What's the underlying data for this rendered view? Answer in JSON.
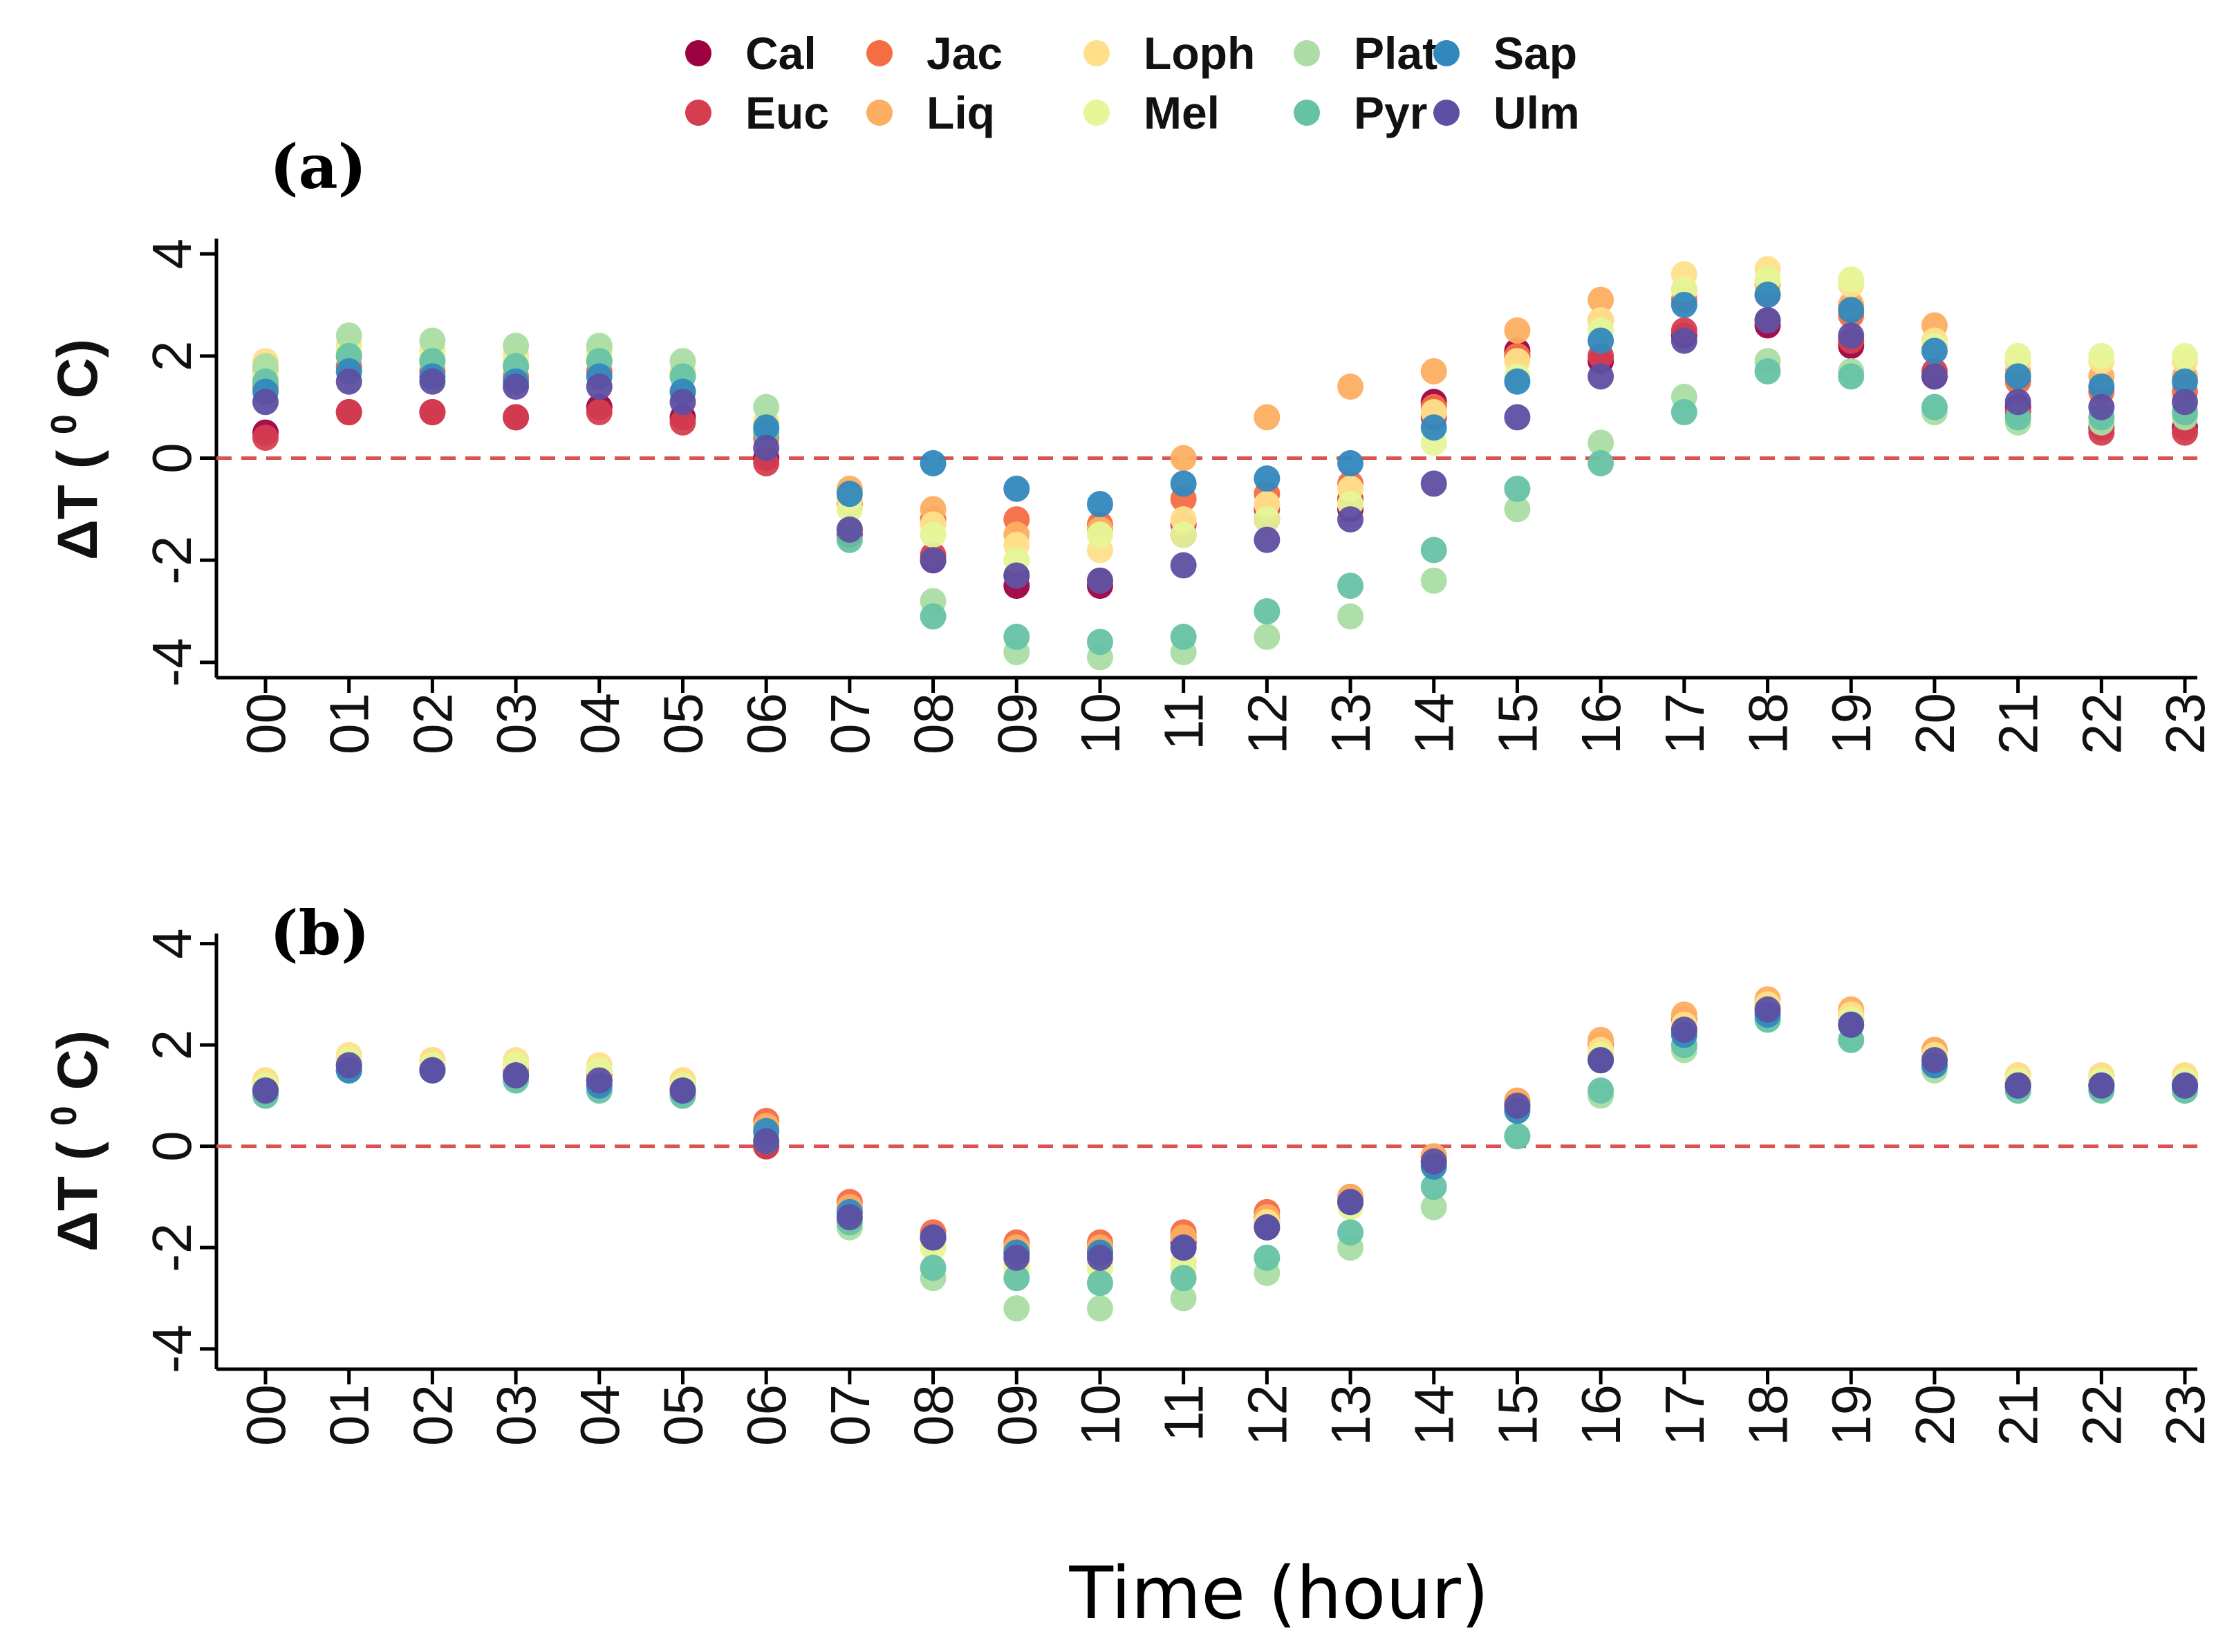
{
  "legend": [
    {
      "key": "Cal",
      "label": "Cal",
      "color": "#9E0142"
    },
    {
      "key": "Euc",
      "label": "Euc",
      "color": "#D53E4F"
    },
    {
      "key": "Jac",
      "label": "Jac",
      "color": "#F46D43"
    },
    {
      "key": "Liq",
      "label": "Liq",
      "color": "#FDAE61"
    },
    {
      "key": "Loph",
      "label": "Loph",
      "color": "#FEE08B"
    },
    {
      "key": "Mel",
      "label": "Mel",
      "color": "#E6F598"
    },
    {
      "key": "Plat",
      "label": "Plat",
      "color": "#ABDDA4"
    },
    {
      "key": "Pyr",
      "label": "Pyr",
      "color": "#66C2A5"
    },
    {
      "key": "Sap",
      "label": "Sap",
      "color": "#3288BD"
    },
    {
      "key": "Ulm",
      "label": "Ulm",
      "color": "#5E4FA2"
    }
  ],
  "xlabel": "Time (hour)",
  "reference_line_color": "#D9534F",
  "chart_data": [
    {
      "type": "scatter",
      "panel_label": "(a)",
      "title": "",
      "ylabel_main": "ΔT (",
      "ylabel_sup": "0",
      "ylabel_end": "C)",
      "ylim": [
        -4.3,
        4.3
      ],
      "yticks": [
        -4,
        -2,
        0,
        2,
        4
      ],
      "ytick_labels": [
        "-4",
        "-2",
        "0",
        "2",
        "4"
      ],
      "hline": 0,
      "x": [
        "00",
        "01",
        "02",
        "03",
        "04",
        "05",
        "06",
        "07",
        "08",
        "09",
        "10",
        "11",
        "12",
        "13",
        "14",
        "15",
        "16",
        "17",
        "18",
        "19",
        "20",
        "21",
        "22",
        "23"
      ],
      "series": [
        {
          "name": "Cal",
          "values": [
            0.5,
            0.9,
            0.9,
            0.8,
            1.0,
            0.8,
            0.0,
            -1.5,
            -2.0,
            -2.5,
            -2.5,
            -1.5,
            -1.2,
            -1.0,
            1.1,
            2.1,
            1.9,
            2.4,
            2.6,
            2.2,
            1.6,
            1.0,
            0.6,
            0.6
          ]
        },
        {
          "name": "Euc",
          "values": [
            0.4,
            0.9,
            0.9,
            0.8,
            0.9,
            0.7,
            -0.1,
            -1.4,
            -1.9,
            -2.3,
            -2.4,
            -1.3,
            -1.0,
            -0.8,
            0.8,
            2.0,
            2.0,
            2.5,
            2.7,
            2.3,
            1.7,
            0.9,
            0.5,
            0.5
          ]
        },
        {
          "name": "Jac",
          "values": [
            1.4,
            1.8,
            1.7,
            1.6,
            1.7,
            1.3,
            0.4,
            -0.9,
            -1.2,
            -1.2,
            -1.3,
            -0.8,
            -0.7,
            -0.5,
            1.0,
            2.0,
            2.7,
            3.1,
            3.2,
            2.8,
            2.2,
            1.5,
            1.3,
            1.3
          ]
        },
        {
          "name": "Liq",
          "values": [
            1.7,
            2.0,
            1.9,
            1.8,
            1.9,
            1.6,
            0.6,
            -0.6,
            -1.0,
            -1.5,
            -1.4,
            0.0,
            0.8,
            1.4,
            1.7,
            2.5,
            3.1,
            3.3,
            3.4,
            3.0,
            2.6,
            1.7,
            1.6,
            1.6
          ]
        },
        {
          "name": "Loph",
          "values": [
            1.9,
            2.2,
            2.1,
            2.0,
            2.1,
            1.7,
            0.7,
            -0.8,
            -1.3,
            -1.7,
            -1.8,
            -1.2,
            -0.9,
            -0.6,
            0.9,
            1.9,
            2.7,
            3.6,
            3.7,
            3.4,
            2.3,
            1.9,
            1.9,
            1.9
          ]
        },
        {
          "name": "Mel",
          "values": [
            1.6,
            2.1,
            2.0,
            1.9,
            2.0,
            1.6,
            0.6,
            -1.0,
            -1.5,
            -2.0,
            -1.5,
            -1.5,
            -1.2,
            -0.9,
            0.3,
            1.6,
            2.5,
            3.3,
            3.5,
            3.5,
            2.2,
            2.0,
            2.0,
            2.0
          ]
        },
        {
          "name": "Plat",
          "values": [
            1.8,
            2.4,
            2.3,
            2.2,
            2.2,
            1.9,
            1.0,
            -1.4,
            -2.8,
            -3.8,
            -3.9,
            -3.8,
            -3.5,
            -3.1,
            -2.4,
            -1.0,
            0.3,
            1.2,
            1.9,
            1.7,
            0.9,
            0.7,
            0.7,
            0.8
          ]
        },
        {
          "name": "Pyr",
          "values": [
            1.5,
            2.0,
            1.9,
            1.8,
            1.9,
            1.6,
            0.5,
            -1.6,
            -3.1,
            -3.5,
            -3.6,
            -3.5,
            -3.0,
            -2.5,
            -1.8,
            -0.6,
            -0.1,
            0.9,
            1.7,
            1.6,
            1.0,
            0.8,
            0.8,
            0.9
          ]
        },
        {
          "name": "Sap",
          "values": [
            1.3,
            1.7,
            1.6,
            1.5,
            1.6,
            1.3,
            0.6,
            -0.7,
            -0.1,
            -0.6,
            -0.9,
            -0.5,
            -0.4,
            -0.1,
            0.6,
            1.5,
            2.3,
            3.0,
            3.2,
            2.9,
            2.1,
            1.6,
            1.4,
            1.5
          ]
        },
        {
          "name": "Ulm",
          "values": [
            1.1,
            1.5,
            1.5,
            1.4,
            1.4,
            1.1,
            0.2,
            -1.4,
            -2.0,
            -2.3,
            -2.4,
            -2.1,
            -1.6,
            -1.2,
            -0.5,
            0.8,
            1.6,
            2.3,
            2.7,
            2.4,
            1.6,
            1.1,
            1.0,
            1.1
          ]
        }
      ]
    },
    {
      "type": "scatter",
      "panel_label": "(b)",
      "title": "",
      "ylabel_main": "ΔT (",
      "ylabel_sup": "0",
      "ylabel_end": "C)",
      "ylim": [
        -4.4,
        4.2
      ],
      "yticks": [
        -4,
        -2,
        0,
        2,
        4
      ],
      "ytick_labels": [
        "-4",
        "-2",
        "0",
        "2",
        "4"
      ],
      "hline": 0,
      "x": [
        "00",
        "01",
        "02",
        "03",
        "04",
        "05",
        "06",
        "07",
        "08",
        "09",
        "10",
        "11",
        "12",
        "13",
        "14",
        "15",
        "16",
        "17",
        "18",
        "19",
        "20",
        "21",
        "22",
        "23"
      ],
      "series": [
        {
          "name": "Cal",
          "values": [
            1.1,
            1.5,
            1.5,
            1.4,
            1.3,
            1.1,
            0.0,
            -1.3,
            -1.8,
            -2.1,
            -2.1,
            -1.9,
            -1.5,
            -1.1,
            -0.3,
            0.8,
            1.8,
            2.3,
            2.7,
            2.5,
            1.7,
            1.2,
            1.2,
            1.2
          ]
        },
        {
          "name": "Euc",
          "values": [
            1.1,
            1.5,
            1.5,
            1.4,
            1.3,
            1.1,
            0.0,
            -1.2,
            -1.8,
            -2.0,
            -2.0,
            -1.8,
            -1.4,
            -1.0,
            -0.2,
            0.8,
            1.8,
            2.3,
            2.7,
            2.5,
            1.7,
            1.2,
            1.2,
            1.2
          ]
        },
        {
          "name": "Jac",
          "values": [
            1.2,
            1.6,
            1.6,
            1.5,
            1.4,
            1.2,
            0.5,
            -1.1,
            -1.7,
            -1.9,
            -1.9,
            -1.7,
            -1.3,
            -1.0,
            -0.2,
            0.9,
            2.0,
            2.5,
            2.8,
            2.6,
            1.9,
            1.3,
            1.3,
            1.3
          ]
        },
        {
          "name": "Liq",
          "values": [
            1.3,
            1.7,
            1.7,
            1.6,
            1.5,
            1.3,
            0.4,
            -1.2,
            -1.8,
            -2.0,
            -2.0,
            -1.8,
            -1.4,
            -1.0,
            -0.2,
            0.9,
            2.1,
            2.6,
            2.9,
            2.7,
            1.9,
            1.4,
            1.4,
            1.4
          ]
        },
        {
          "name": "Loph",
          "values": [
            1.3,
            1.8,
            1.7,
            1.7,
            1.6,
            1.3,
            0.3,
            -1.3,
            -1.9,
            -2.3,
            -2.3,
            -2.3,
            -1.5,
            -1.1,
            -0.3,
            0.8,
            1.9,
            2.4,
            2.8,
            2.6,
            1.8,
            1.4,
            1.4,
            1.4
          ]
        },
        {
          "name": "Mel",
          "values": [
            1.2,
            1.7,
            1.6,
            1.6,
            1.5,
            1.2,
            0.2,
            -1.4,
            -2.0,
            -2.4,
            -2.4,
            -2.4,
            -1.6,
            -1.2,
            -0.4,
            0.7,
            1.8,
            2.3,
            2.7,
            2.5,
            1.7,
            1.3,
            1.3,
            1.3
          ]
        },
        {
          "name": "Plat",
          "values": [
            1.0,
            1.5,
            1.5,
            1.4,
            1.2,
            1.0,
            0.1,
            -1.6,
            -2.6,
            -3.2,
            -3.2,
            -3.0,
            -2.5,
            -2.0,
            -1.2,
            0.2,
            1.0,
            1.9,
            2.5,
            2.1,
            1.5,
            1.1,
            1.1,
            1.1
          ]
        },
        {
          "name": "Pyr",
          "values": [
            1.0,
            1.5,
            1.5,
            1.3,
            1.1,
            1.0,
            0.1,
            -1.5,
            -2.4,
            -2.6,
            -2.7,
            -2.6,
            -2.2,
            -1.7,
            -0.8,
            0.2,
            1.1,
            2.0,
            2.5,
            2.1,
            1.6,
            1.1,
            1.1,
            1.1
          ]
        },
        {
          "name": "Sap",
          "values": [
            1.1,
            1.5,
            1.5,
            1.4,
            1.2,
            1.1,
            0.3,
            -1.3,
            -1.8,
            -2.1,
            -2.1,
            -2.0,
            -1.6,
            -1.1,
            -0.4,
            0.7,
            1.7,
            2.2,
            2.6,
            2.4,
            1.6,
            1.2,
            1.2,
            1.2
          ]
        },
        {
          "name": "Ulm",
          "values": [
            1.1,
            1.6,
            1.5,
            1.4,
            1.3,
            1.1,
            0.1,
            -1.4,
            -1.8,
            -2.2,
            -2.2,
            -2.0,
            -1.6,
            -1.1,
            -0.3,
            0.8,
            1.7,
            2.3,
            2.7,
            2.4,
            1.7,
            1.2,
            1.2,
            1.2
          ]
        }
      ]
    }
  ]
}
